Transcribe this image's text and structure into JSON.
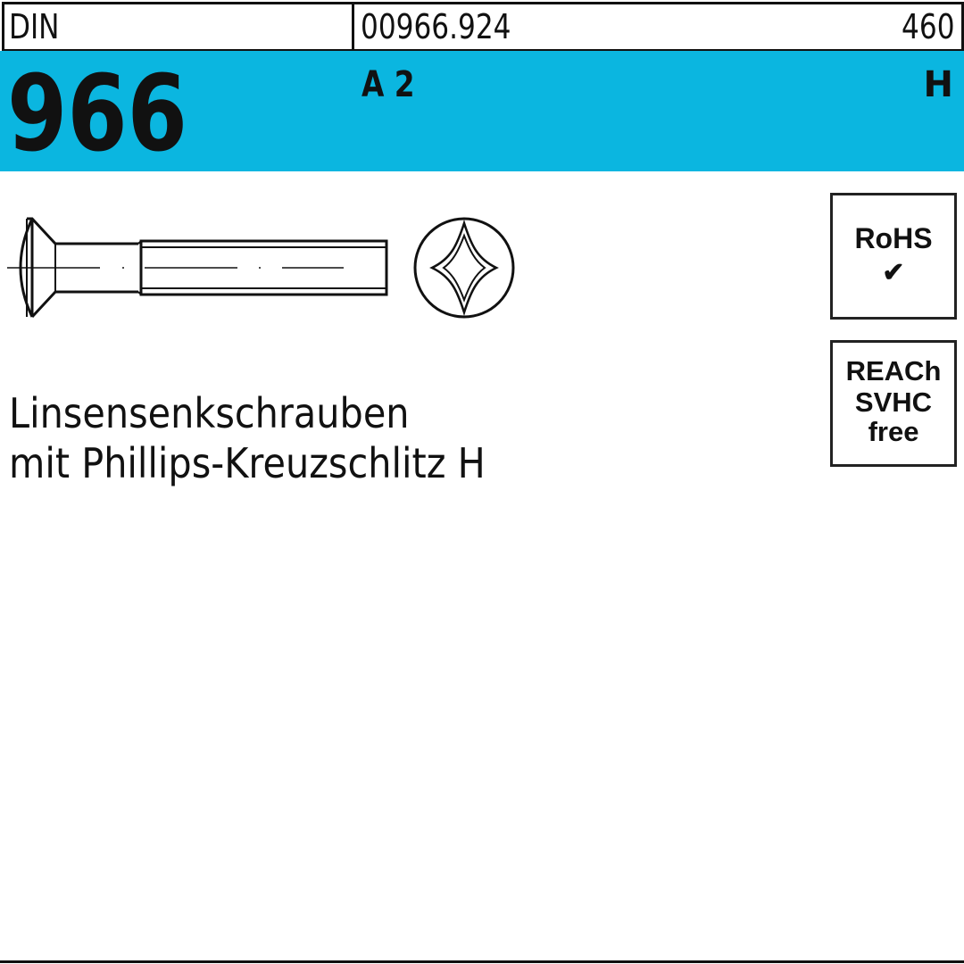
{
  "colors": {
    "accent": "#0bb6e0"
  },
  "header": {
    "standard_label": "DIN",
    "article_number": "00966.924",
    "page_number": "460"
  },
  "band": {
    "din_number": "966",
    "material_grade": "A 2",
    "drive_type": "H"
  },
  "badges": {
    "rohs": {
      "line1": "RoHS",
      "icon": "checkmark-icon"
    },
    "reach": {
      "line1": "REACh",
      "line2": "SVHC",
      "line3": "free"
    }
  },
  "description": {
    "line1": "Linsensenkschrauben",
    "line2": "mit Phillips-Kreuzschlitz H"
  }
}
